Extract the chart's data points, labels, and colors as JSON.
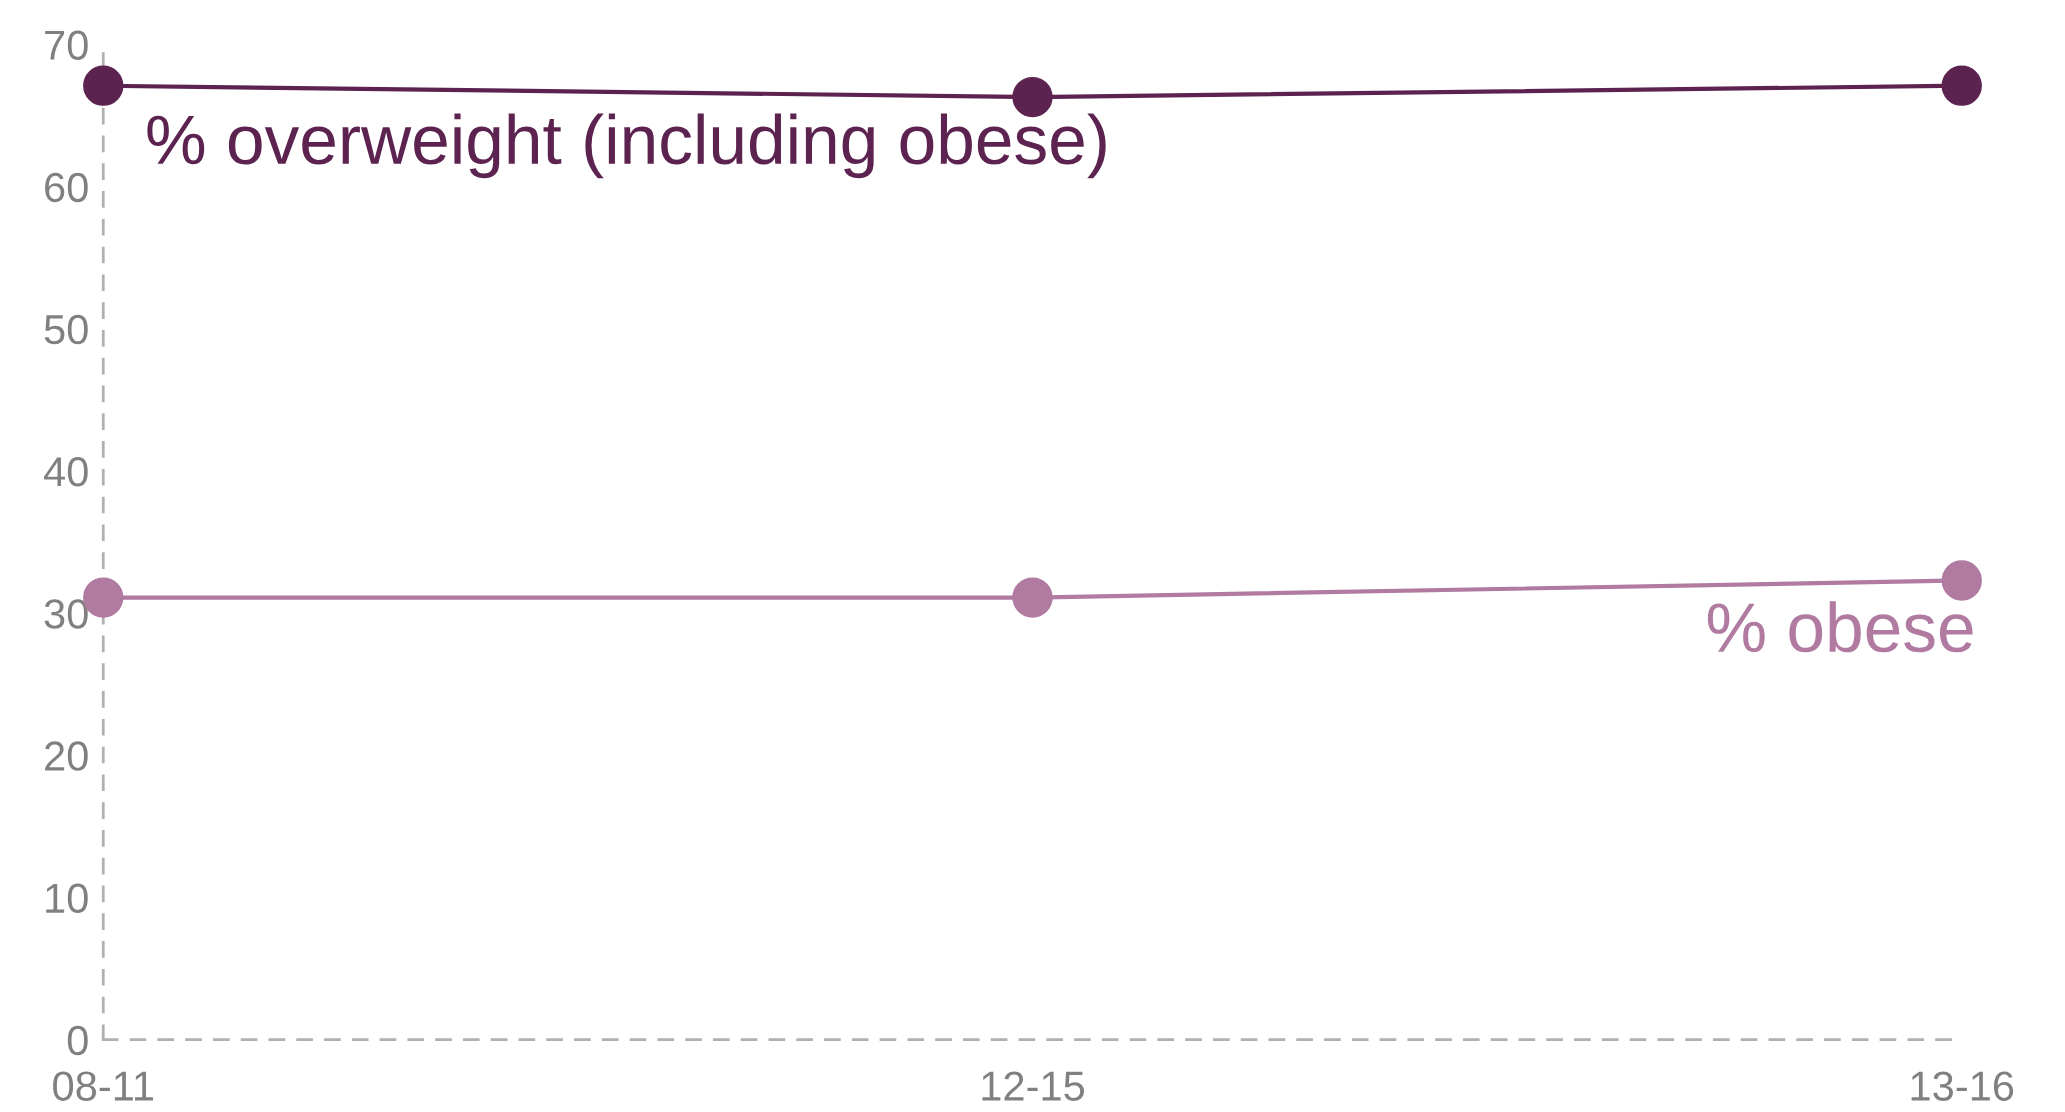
{
  "chart_data": {
    "type": "line",
    "categories": [
      "08-11",
      "12-15",
      "13-16"
    ],
    "series": [
      {
        "name": "% overweight (including obese)",
        "color": "#5c2350",
        "values": [
          67.1,
          66.3,
          67.1
        ]
      },
      {
        "name": "% obese",
        "color": "#b07aa1",
        "values": [
          31.1,
          31.1,
          32.3
        ]
      }
    ],
    "ylim": [
      0,
      70
    ],
    "yticks": [
      0,
      10,
      20,
      30,
      40,
      50,
      60,
      70
    ],
    "grid": false,
    "legend": false,
    "marker": "circle",
    "line_style": "solid"
  }
}
